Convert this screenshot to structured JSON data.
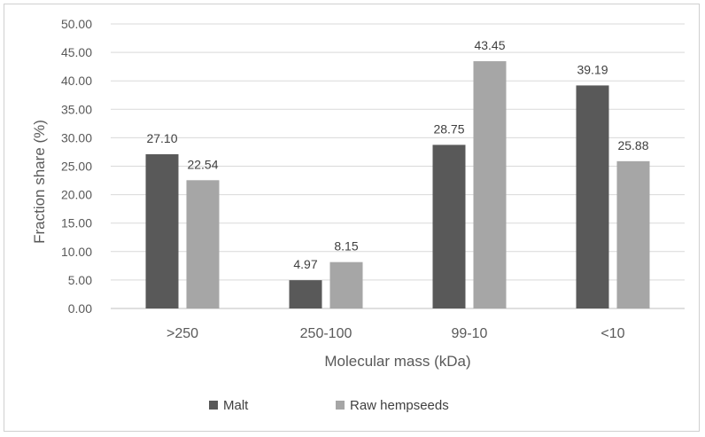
{
  "chart_data": {
    "type": "bar",
    "title": "",
    "xlabel": "Molecular mass (kDa)",
    "ylabel": "Fraction share (%)",
    "ylim": [
      0,
      50
    ],
    "ytick_step": 5,
    "yticks": [
      "0.00",
      "5.00",
      "10.00",
      "15.00",
      "20.00",
      "25.00",
      "30.00",
      "35.00",
      "40.00",
      "45.00",
      "50.00"
    ],
    "categories": [
      ">250",
      "250-100",
      "99-10",
      "<10"
    ],
    "series": [
      {
        "name": "Malt",
        "color": "#595959",
        "values": [
          27.1,
          4.97,
          28.75,
          39.19
        ],
        "labels": [
          "27.10",
          "4.97",
          "28.75",
          "39.19"
        ]
      },
      {
        "name": "Raw hempseeds",
        "color": "#a6a6a6",
        "values": [
          22.54,
          8.15,
          43.45,
          25.88
        ],
        "labels": [
          "22.54",
          "8.15",
          "43.45",
          "25.88"
        ]
      }
    ],
    "legend_position": "bottom",
    "grid": true
  }
}
